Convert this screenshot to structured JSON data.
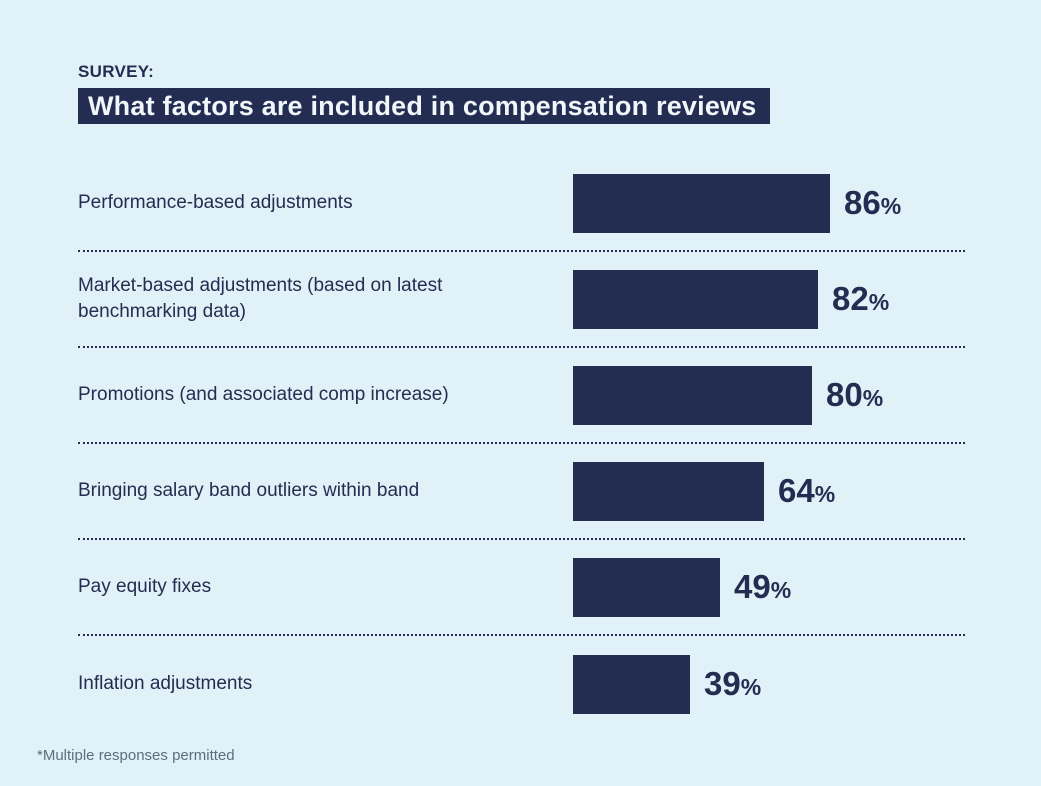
{
  "header": {
    "kicker": "SURVEY:",
    "title": "What factors are included in compensation reviews"
  },
  "footnote": "*Multiple responses permitted",
  "colors": {
    "background": "#e0f1f7",
    "bar_navy": "#232d52",
    "banner_background": "#232d52",
    "banner_text": "#f0f6f9",
    "label_text": "#232d52",
    "footnote_text": "#5d6f7f"
  },
  "chart_data": {
    "type": "bar",
    "orientation": "horizontal",
    "title": "What factors are included in compensation reviews",
    "subtitle": "SURVEY:",
    "unit": "%",
    "categories": [
      "Performance-based adjustments",
      "Market-based adjustments (based on latest benchmarking data)",
      "Promotions (and associated comp increase)",
      "Bringing salary band outliers within band",
      "Pay equity fixes",
      "Inflation adjustments"
    ],
    "values": [
      86,
      82,
      80,
      64,
      49,
      39
    ],
    "xlim": [
      0,
      100
    ],
    "grid": false,
    "legend": false,
    "value_label_position": "right-of-bar",
    "separator_style": "dotted",
    "annotation": "*Multiple responses permitted"
  }
}
